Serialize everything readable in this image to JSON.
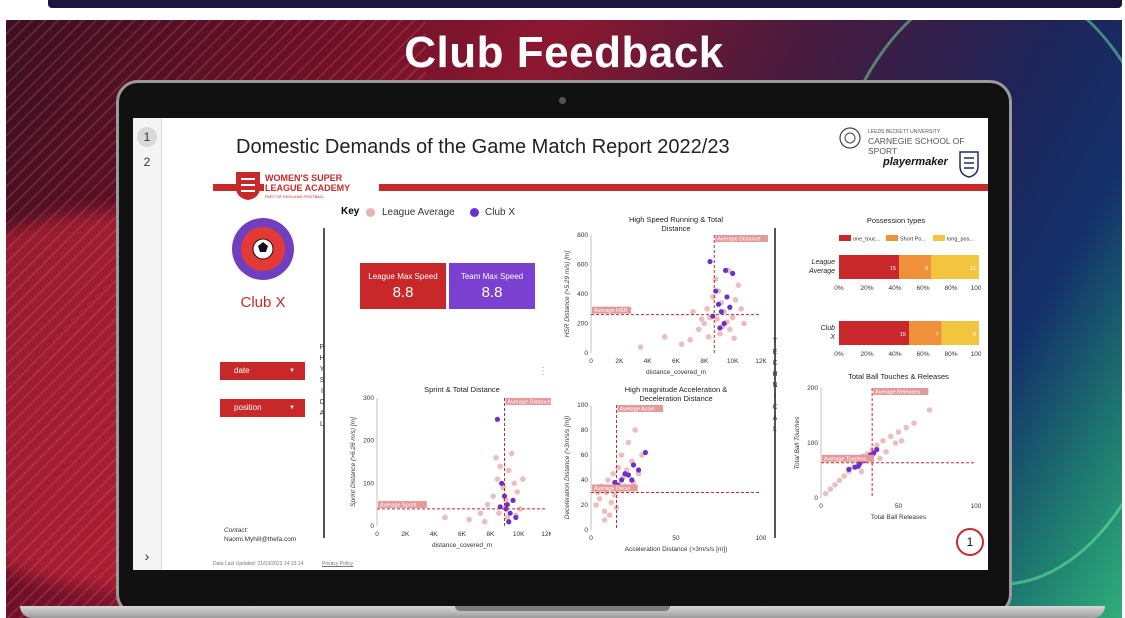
{
  "slide_title": "Club Feedback",
  "pages": [
    {
      "label": "1"
    },
    {
      "label": "2"
    }
  ],
  "next_label": "›",
  "report": {
    "title": "Domestic Demands of the Game Match Report 2022/23",
    "academy_lines": [
      "WOMEN'S SUPER",
      "LEAGUE ACADEMY",
      "PART OF ENGLAND FOOTBALL"
    ],
    "university_small": "LEEDS BECKETT UNIVERSITY",
    "university": "CARNEGIE SCHOOL OF SPORT",
    "sponsor": "playermaker",
    "club_name": "Club X",
    "key": {
      "label": "Key",
      "league": "League Average",
      "club": "Club X"
    },
    "cards": [
      {
        "label": "League Max Speed",
        "value": "8.8",
        "color": "#c8282a"
      },
      {
        "label": "Team Max Speed",
        "value": "8.8",
        "color": "#7b3fd1"
      }
    ],
    "filters": [
      {
        "label": "date"
      },
      {
        "label": "position"
      }
    ],
    "physical_letters": [
      "P",
      "H",
      "Y",
      "S",
      "I",
      "C",
      "A",
      "L"
    ],
    "technical_letters": [
      "T",
      "E",
      "C",
      "H",
      "N",
      "I",
      "C",
      "A",
      "L"
    ],
    "contact_label": "Contact:",
    "contact_email": "Naomi.Myhill@thefa.com",
    "footer_date": "Data Last Updated: 21/03/2023 14:33:14",
    "footer_privacy": "Privacy Policy",
    "page_number": "1",
    "colors": {
      "red": "#c8282a",
      "purple": "#6a2fd0",
      "pink": "#eab3b3"
    }
  },
  "chart_data": [
    {
      "type": "scatter",
      "title": "High Speed Running & Total Distance",
      "xlabel": "distance_covered_m",
      "ylabel": "HSR Distance (>5.29 m/s) [m]",
      "xlim": [
        0,
        12000
      ],
      "ylim": [
        0,
        800
      ],
      "x_ticks": [
        "0",
        "2K",
        "4K",
        "6K",
        "8K",
        "10K",
        "12K"
      ],
      "y_ticks": [
        "0",
        "200",
        "400",
        "600",
        "800"
      ],
      "ref_x": {
        "value": 8700,
        "label": "Average Distance"
      },
      "ref_y": {
        "value": 260,
        "label": "Average HSR"
      },
      "series": [
        {
          "name": "League Average",
          "points": [
            [
              3500,
              40
            ],
            [
              5200,
              110
            ],
            [
              6400,
              60
            ],
            [
              7000,
              90
            ],
            [
              7600,
              160
            ],
            [
              8000,
              200
            ],
            [
              8200,
              300
            ],
            [
              8400,
              240
            ],
            [
              8600,
              380
            ],
            [
              8800,
              500
            ],
            [
              9000,
              420
            ],
            [
              9200,
              340
            ],
            [
              9400,
              280
            ],
            [
              9600,
              210
            ],
            [
              9800,
              160
            ],
            [
              10000,
              240
            ],
            [
              10200,
              360
            ],
            [
              10400,
              460
            ],
            [
              10600,
              300
            ],
            [
              10800,
              200
            ],
            [
              9100,
              130
            ],
            [
              8300,
              110
            ],
            [
              7800,
              230
            ],
            [
              9700,
              560
            ],
            [
              10100,
              100
            ],
            [
              8900,
              230
            ],
            [
              9300,
              180
            ],
            [
              7200,
              280
            ]
          ]
        },
        {
          "name": "Club X",
          "points": [
            [
              8400,
              620
            ],
            [
              8800,
              420
            ],
            [
              9000,
              330
            ],
            [
              9200,
              280
            ],
            [
              9400,
              200
            ],
            [
              9600,
              380
            ],
            [
              9800,
              310
            ],
            [
              8600,
              250
            ],
            [
              9100,
              170
            ],
            [
              9500,
              560
            ],
            [
              10000,
              540
            ]
          ]
        }
      ]
    },
    {
      "type": "scatter",
      "title": "Sprint & Total Distance",
      "xlabel": "distance_covered_m",
      "ylabel": "Sprint Distance (>6.26 m/s) [m]",
      "xlim": [
        0,
        12000
      ],
      "ylim": [
        0,
        300
      ],
      "x_ticks": [
        "0",
        "2K",
        "4K",
        "6K",
        "8K",
        "10K",
        "12K"
      ],
      "y_ticks": [
        "0",
        "100",
        "200",
        "300"
      ],
      "ref_x": {
        "value": 9000,
        "label": "Average Distance"
      },
      "ref_y": {
        "value": 40,
        "label": "Average Sprint"
      },
      "series": [
        {
          "name": "League Average",
          "points": [
            [
              4800,
              20
            ],
            [
              6500,
              15
            ],
            [
              7300,
              30
            ],
            [
              7800,
              50
            ],
            [
              8200,
              70
            ],
            [
              8500,
              110
            ],
            [
              8700,
              140
            ],
            [
              8900,
              90
            ],
            [
              9100,
              60
            ],
            [
              9300,
              130
            ],
            [
              9500,
              170
            ],
            [
              9700,
              100
            ],
            [
              9900,
              80
            ],
            [
              10100,
              40
            ],
            [
              10300,
              110
            ],
            [
              8600,
              30
            ],
            [
              9200,
              20
            ],
            [
              7600,
              10
            ],
            [
              9800,
              25
            ],
            [
              8400,
              160
            ]
          ]
        },
        {
          "name": "Club X",
          "points": [
            [
              8500,
              250
            ],
            [
              8800,
              100
            ],
            [
              9000,
              70
            ],
            [
              9200,
              50
            ],
            [
              9400,
              30
            ],
            [
              9600,
              60
            ],
            [
              9800,
              20
            ],
            [
              9100,
              40
            ],
            [
              8700,
              45
            ],
            [
              9300,
              10
            ]
          ]
        }
      ]
    },
    {
      "type": "scatter",
      "title": "High magnitude Acceleration & Deceleration Distance",
      "xlabel": "Acceleration Distance (>3m/s/s [m])",
      "ylabel": "Deceleration Distance (>3m/s/s [m])",
      "xlim": [
        0,
        100
      ],
      "ylim": [
        0,
        100
      ],
      "x_ticks": [
        "0",
        "50",
        "100"
      ],
      "y_ticks": [
        "0",
        "20",
        "40",
        "60",
        "80",
        "100"
      ],
      "ref_x": {
        "value": 15,
        "label": "Average Accel"
      },
      "ref_y": {
        "value": 30,
        "label": "Average Decel"
      },
      "series": [
        {
          "name": "League Average",
          "points": [
            [
              3,
              20
            ],
            [
              5,
              25
            ],
            [
              6,
              35
            ],
            [
              8,
              15
            ],
            [
              9,
              30
            ],
            [
              10,
              40
            ],
            [
              12,
              22
            ],
            [
              13,
              45
            ],
            [
              14,
              28
            ],
            [
              16,
              50
            ],
            [
              18,
              60
            ],
            [
              20,
              35
            ],
            [
              22,
              70
            ],
            [
              24,
              55
            ],
            [
              26,
              80
            ],
            [
              28,
              45
            ],
            [
              30,
              60
            ],
            [
              8,
              8
            ],
            [
              11,
              12
            ],
            [
              19,
              42
            ],
            [
              25,
              38
            ],
            [
              4,
              30
            ],
            [
              15,
              18
            ],
            [
              21,
              48
            ]
          ]
        },
        {
          "name": "Club X",
          "points": [
            [
              10,
              33
            ],
            [
              14,
              38
            ],
            [
              18,
              40
            ],
            [
              20,
              45
            ],
            [
              22,
              44
            ],
            [
              25,
              52
            ],
            [
              28,
              48
            ],
            [
              32,
              62
            ],
            [
              16,
              36
            ],
            [
              24,
              40
            ]
          ]
        }
      ]
    },
    {
      "type": "bar",
      "title": "Possession types",
      "orientation": "horizontal-stacked",
      "categories": [
        "League Average",
        "Club X"
      ],
      "legend": [
        "one_touc...",
        "Short Po...",
        "long_pos..."
      ],
      "x_ticks": [
        "0%",
        "20%",
        "40%",
        "60%",
        "80%",
        "100%"
      ],
      "series": [
        {
          "name": "one_touc...",
          "values": [
            15,
            15
          ],
          "color": "#c8282a"
        },
        {
          "name": "Short Po...",
          "values": [
            8,
            7
          ],
          "color": "#f0913a"
        },
        {
          "name": "long_pos...",
          "values": [
            12,
            8
          ],
          "color": "#f3c43e"
        }
      ]
    },
    {
      "type": "scatter",
      "title": "Total Ball Touches & Releases",
      "xlabel": "Total Ball Releases",
      "ylabel": "Total Ball Touches",
      "xlim": [
        0,
        100
      ],
      "ylim": [
        0,
        250
      ],
      "x_ticks": [
        "0",
        "50",
        "100"
      ],
      "y_ticks": [
        "0",
        "100",
        "200"
      ],
      "ref_x": {
        "value": 33,
        "label": "Average Releases"
      },
      "ref_y": {
        "value": 80,
        "label": "Average Touches"
      },
      "series": [
        {
          "name": "League Average",
          "points": [
            [
              3,
              10
            ],
            [
              6,
              20
            ],
            [
              9,
              30
            ],
            [
              12,
              40
            ],
            [
              15,
              50
            ],
            [
              18,
              60
            ],
            [
              21,
              70
            ],
            [
              24,
              80
            ],
            [
              27,
              95
            ],
            [
              30,
              100
            ],
            [
              33,
              110
            ],
            [
              36,
              120
            ],
            [
              40,
              130
            ],
            [
              45,
              140
            ],
            [
              50,
              150
            ],
            [
              55,
              160
            ],
            [
              60,
              170
            ],
            [
              70,
              200
            ],
            [
              38,
              90
            ],
            [
              26,
              60
            ],
            [
              42,
              105
            ],
            [
              48,
              125
            ],
            [
              52,
              130
            ]
          ]
        },
        {
          "name": "Club X",
          "points": [
            [
              18,
              65
            ],
            [
              22,
              70
            ],
            [
              25,
              78
            ],
            [
              28,
              85
            ],
            [
              30,
              90
            ],
            [
              32,
              98
            ],
            [
              34,
              102
            ],
            [
              36,
              110
            ],
            [
              24,
              72
            ]
          ]
        }
      ]
    }
  ]
}
